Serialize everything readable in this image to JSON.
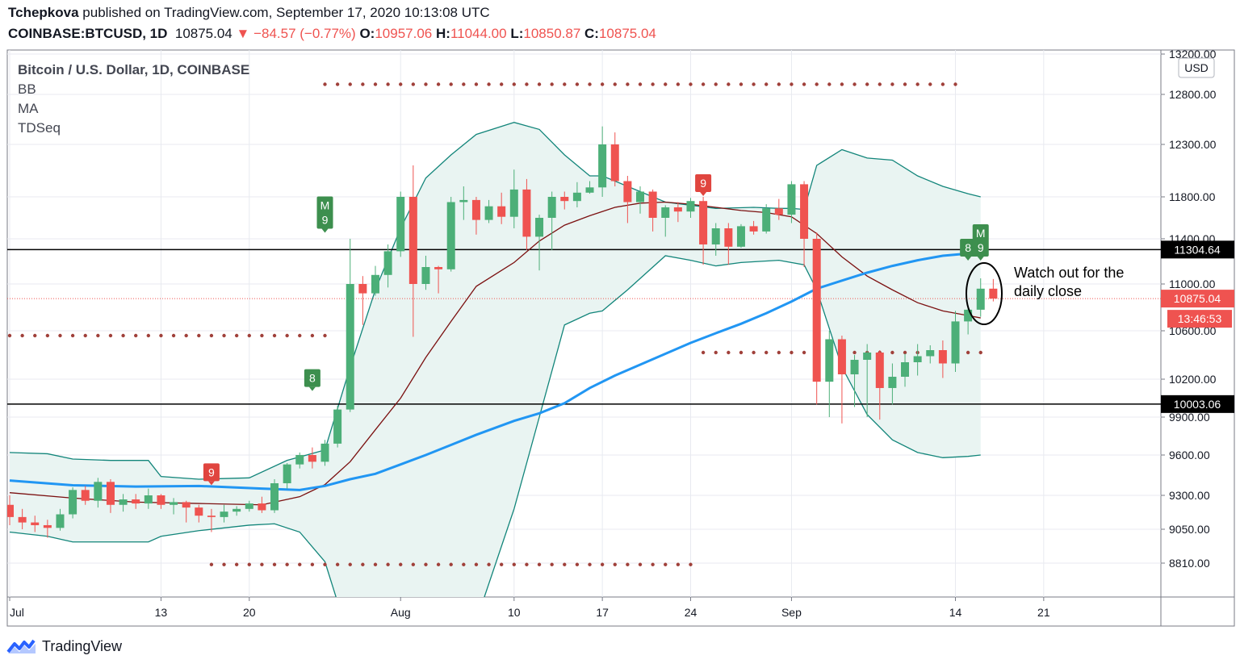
{
  "header": {
    "author": "Tchepkova",
    "published_text": "published on TradingView.com, September 17, 2020 10:13:08 UTC",
    "symbol": "COINBASE:BTCUSD, 1D",
    "last": "10875.04",
    "change": "−84.57 (−0.77%)",
    "open_label": "O:",
    "open": "10957.06",
    "high_label": "H:",
    "high": "11044.00",
    "low_label": "L:",
    "low": "10850.87",
    "close_label": "C:",
    "close": "10875.04"
  },
  "legend": {
    "title": "Bitcoin / U.S. Dollar, 1D, COINBASE",
    "indicators": [
      "BB",
      "MA",
      "TDSeq"
    ]
  },
  "footer": {
    "brand": "TradingView"
  },
  "colors": {
    "up": "#4caf78",
    "down": "#ef5350",
    "bb_band": "#12857a",
    "bb_fill": "#e9f4f2",
    "ma_blue": "#2196f3",
    "ma_dark": "#7b1010",
    "dots": "#a0403a",
    "hline": "#000000",
    "price_tag": "#ef5350"
  },
  "chart_data": {
    "type": "candlestick",
    "currency_badge": "USD",
    "x_ticks": [
      {
        "label": "Jul",
        "index": 0
      },
      {
        "label": "13",
        "index": 12
      },
      {
        "label": "20",
        "index": 19
      },
      {
        "label": "Aug",
        "index": 31
      },
      {
        "label": "10",
        "index": 40
      },
      {
        "label": "17",
        "index": 47
      },
      {
        "label": "24",
        "index": 54
      },
      {
        "label": "Sep",
        "index": 62
      },
      {
        "label": "14",
        "index": 75
      },
      {
        "label": "21",
        "index": 82
      }
    ],
    "y_ticks": [
      "13200.00",
      "12800.00",
      "12300.00",
      "11800.00",
      "11400.00",
      "11000.00",
      "10600.00",
      "10200.00",
      "9900.00",
      "9600.00",
      "9300.00",
      "9050.00",
      "8810.00"
    ],
    "horizontal_lines": [
      {
        "price": 11304.64,
        "label": "11304.64"
      },
      {
        "price": 10003.06,
        "label": "10003.06"
      }
    ],
    "price_label": {
      "price": 10875.04,
      "label": "10875.04",
      "countdown": "13:46:53"
    },
    "candles": [
      [
        9230,
        9300,
        9080,
        9140
      ],
      [
        9140,
        9200,
        9050,
        9100
      ],
      [
        9100,
        9150,
        9030,
        9080
      ],
      [
        9080,
        9120,
        8990,
        9060
      ],
      [
        9060,
        9200,
        9040,
        9160
      ],
      [
        9160,
        9360,
        9130,
        9340
      ],
      [
        9340,
        9370,
        9230,
        9260
      ],
      [
        9260,
        9430,
        9210,
        9400
      ],
      [
        9400,
        9420,
        9170,
        9230
      ],
      [
        9230,
        9310,
        9180,
        9270
      ],
      [
        9270,
        9310,
        9200,
        9240
      ],
      [
        9240,
        9350,
        9200,
        9300
      ],
      [
        9300,
        9310,
        9200,
        9230
      ],
      [
        9230,
        9280,
        9160,
        9250
      ],
      [
        9250,
        9260,
        9100,
        9210
      ],
      [
        9210,
        9230,
        9100,
        9150
      ],
      [
        9150,
        9200,
        9030,
        9140
      ],
      [
        9140,
        9230,
        9100,
        9180
      ],
      [
        9180,
        9220,
        9150,
        9200
      ],
      [
        9200,
        9260,
        9180,
        9240
      ],
      [
        9240,
        9290,
        9170,
        9190
      ],
      [
        9190,
        9420,
        9170,
        9390
      ],
      [
        9390,
        9540,
        9350,
        9530
      ],
      [
        9530,
        9620,
        9500,
        9600
      ],
      [
        9600,
        9660,
        9500,
        9550
      ],
      [
        9550,
        9720,
        9520,
        9690
      ],
      [
        9690,
        9990,
        9660,
        9960
      ],
      [
        9960,
        11400,
        9940,
        11000
      ],
      [
        11000,
        11070,
        10650,
        10920
      ],
      [
        10920,
        11160,
        10900,
        11080
      ],
      [
        11080,
        11350,
        10970,
        11290
      ],
      [
        11290,
        11850,
        11240,
        11800
      ],
      [
        11800,
        12100,
        10550,
        11000
      ],
      [
        11000,
        11250,
        10950,
        11150
      ],
      [
        11150,
        11160,
        10920,
        11130
      ],
      [
        11130,
        11800,
        11110,
        11750
      ],
      [
        11750,
        11900,
        11580,
        11770
      ],
      [
        11770,
        11800,
        11440,
        11580
      ],
      [
        11580,
        11770,
        11550,
        11710
      ],
      [
        11710,
        11840,
        11540,
        11610
      ],
      [
        11610,
        12060,
        11500,
        11870
      ],
      [
        11870,
        11970,
        11300,
        11420
      ],
      [
        11420,
        11630,
        11120,
        11600
      ],
      [
        11600,
        11850,
        11300,
        11800
      ],
      [
        11800,
        11850,
        11680,
        11760
      ],
      [
        11760,
        11940,
        11700,
        11840
      ],
      [
        11840,
        11950,
        11830,
        11890
      ],
      [
        11890,
        12480,
        11800,
        12300
      ],
      [
        12300,
        12420,
        11900,
        11950
      ],
      [
        11950,
        12000,
        11550,
        11750
      ],
      [
        11750,
        11900,
        11640,
        11850
      ],
      [
        11850,
        11870,
        11470,
        11600
      ],
      [
        11600,
        11720,
        11420,
        11700
      ],
      [
        11700,
        11750,
        11560,
        11660
      ],
      [
        11660,
        11790,
        11600,
        11760
      ],
      [
        11760,
        11800,
        11170,
        11350
      ],
      [
        11350,
        11550,
        11250,
        11500
      ],
      [
        11500,
        11550,
        11170,
        11330
      ],
      [
        11330,
        11540,
        11320,
        11520
      ],
      [
        11520,
        11570,
        11440,
        11470
      ],
      [
        11470,
        11730,
        11450,
        11690
      ],
      [
        11690,
        11780,
        11580,
        11630
      ],
      [
        11630,
        11950,
        11550,
        11920
      ],
      [
        11920,
        11950,
        11150,
        11400
      ],
      [
        11400,
        11460,
        10000,
        10180
      ],
      [
        10180,
        10600,
        9900,
        10530
      ],
      [
        10530,
        10560,
        9850,
        10240
      ],
      [
        10240,
        10400,
        9980,
        10360
      ],
      [
        10360,
        10490,
        9900,
        10420
      ],
      [
        10420,
        10440,
        9880,
        10130
      ],
      [
        10130,
        10330,
        10000,
        10220
      ],
      [
        10220,
        10410,
        10140,
        10340
      ],
      [
        10340,
        10490,
        10230,
        10390
      ],
      [
        10390,
        10480,
        10330,
        10440
      ],
      [
        10440,
        10520,
        10210,
        10330
      ],
      [
        10330,
        10770,
        10260,
        10680
      ],
      [
        10680,
        10820,
        10570,
        10780
      ],
      [
        10780,
        11050,
        10720,
        10960
      ],
      [
        10960,
        11044,
        10850.87,
        10875.04
      ]
    ],
    "bb_upper": [
      [
        0,
        9620
      ],
      [
        3,
        9610
      ],
      [
        5,
        9570
      ],
      [
        8,
        9560
      ],
      [
        11,
        9560
      ],
      [
        12,
        9440
      ],
      [
        15,
        9420
      ],
      [
        19,
        9430
      ],
      [
        22,
        9560
      ],
      [
        25,
        9640
      ],
      [
        27,
        10300
      ],
      [
        29,
        10950
      ],
      [
        31,
        11500
      ],
      [
        33,
        11980
      ],
      [
        35,
        12200
      ],
      [
        37,
        12400
      ],
      [
        40,
        12520
      ],
      [
        42,
        12450
      ],
      [
        44,
        12200
      ],
      [
        46,
        12000
      ],
      [
        47,
        12000
      ],
      [
        49,
        11900
      ],
      [
        52,
        11750
      ],
      [
        54,
        11720
      ],
      [
        56,
        11690
      ],
      [
        59,
        11700
      ],
      [
        61,
        11690
      ],
      [
        62,
        11690
      ],
      [
        63,
        11680
      ],
      [
        64,
        12100
      ],
      [
        66,
        12250
      ],
      [
        68,
        12170
      ],
      [
        70,
        12150
      ],
      [
        72,
        12000
      ],
      [
        74,
        11900
      ],
      [
        76,
        11830
      ],
      [
        77,
        11800
      ]
    ],
    "bb_lower": [
      [
        0,
        9030
      ],
      [
        3,
        9000
      ],
      [
        5,
        8960
      ],
      [
        8,
        8960
      ],
      [
        11,
        8960
      ],
      [
        12,
        9000
      ],
      [
        15,
        9040
      ],
      [
        19,
        9080
      ],
      [
        21,
        9090
      ],
      [
        23,
        9030
      ],
      [
        25,
        8820
      ],
      [
        27,
        8250
      ],
      [
        29,
        8000
      ],
      [
        31,
        7900
      ],
      [
        33,
        7850
      ],
      [
        35,
        7950
      ],
      [
        37,
        8400
      ],
      [
        40,
        9200
      ],
      [
        42,
        9900
      ],
      [
        44,
        10650
      ],
      [
        46,
        10750
      ],
      [
        47,
        10770
      ],
      [
        49,
        10950
      ],
      [
        52,
        11250
      ],
      [
        54,
        11210
      ],
      [
        56,
        11160
      ],
      [
        58,
        11190
      ],
      [
        61,
        11210
      ],
      [
        63,
        11170
      ],
      [
        64,
        10950
      ],
      [
        66,
        10300
      ],
      [
        68,
        9920
      ],
      [
        70,
        9720
      ],
      [
        72,
        9620
      ],
      [
        74,
        9580
      ],
      [
        76,
        9590
      ],
      [
        77,
        9600
      ]
    ],
    "ma_blue": [
      [
        0,
        9410
      ],
      [
        5,
        9375
      ],
      [
        10,
        9365
      ],
      [
        15,
        9370
      ],
      [
        20,
        9350
      ],
      [
        23,
        9340
      ],
      [
        25,
        9370
      ],
      [
        27,
        9420
      ],
      [
        29,
        9460
      ],
      [
        31,
        9530
      ],
      [
        33,
        9600
      ],
      [
        35,
        9680
      ],
      [
        37,
        9760
      ],
      [
        40,
        9870
      ],
      [
        42,
        9930
      ],
      [
        44,
        10010
      ],
      [
        46,
        10130
      ],
      [
        48,
        10230
      ],
      [
        50,
        10320
      ],
      [
        52,
        10410
      ],
      [
        54,
        10500
      ],
      [
        56,
        10580
      ],
      [
        58,
        10660
      ],
      [
        60,
        10750
      ],
      [
        62,
        10850
      ],
      [
        64,
        10960
      ],
      [
        66,
        11030
      ],
      [
        68,
        11100
      ],
      [
        70,
        11160
      ],
      [
        72,
        11210
      ],
      [
        74,
        11250
      ],
      [
        76,
        11270
      ],
      [
        77,
        11250
      ]
    ],
    "ma_dark": [
      [
        0,
        9320
      ],
      [
        5,
        9280
      ],
      [
        10,
        9250
      ],
      [
        15,
        9240
      ],
      [
        20,
        9230
      ],
      [
        23,
        9290
      ],
      [
        25,
        9380
      ],
      [
        27,
        9550
      ],
      [
        29,
        9800
      ],
      [
        31,
        10050
      ],
      [
        33,
        10380
      ],
      [
        35,
        10680
      ],
      [
        37,
        10980
      ],
      [
        40,
        11190
      ],
      [
        42,
        11380
      ],
      [
        44,
        11530
      ],
      [
        46,
        11620
      ],
      [
        48,
        11700
      ],
      [
        50,
        11740
      ],
      [
        52,
        11750
      ],
      [
        54,
        11730
      ],
      [
        56,
        11700
      ],
      [
        58,
        11670
      ],
      [
        60,
        11650
      ],
      [
        62,
        11610
      ],
      [
        64,
        11450
      ],
      [
        66,
        11240
      ],
      [
        68,
        11070
      ],
      [
        70,
        10950
      ],
      [
        72,
        10840
      ],
      [
        74,
        10770
      ],
      [
        76,
        10730
      ],
      [
        77,
        10710
      ]
    ],
    "dotted_lines": [
      {
        "price": 12900,
        "from": 25,
        "to": 75
      },
      {
        "price": 10560,
        "from": 0,
        "to": 25
      },
      {
        "price": 10420,
        "from": 55,
        "to": 77
      },
      {
        "price": 8800,
        "from": 16,
        "to": 54
      }
    ],
    "td_markers": [
      {
        "index": 16,
        "text": "9",
        "color": "down",
        "pos": "above",
        "price": 9370
      },
      {
        "index": 24,
        "text": "8",
        "color": "up",
        "pos": "above",
        "price": 10100
      },
      {
        "index": 25,
        "text": "M",
        "text2": "9",
        "color": "up",
        "pos": "above",
        "price": 11450
      },
      {
        "index": 55,
        "text": "9",
        "color": "down",
        "pos": "above",
        "price": 11800
      },
      {
        "index": 76,
        "text": "8",
        "color": "up",
        "pos": "above",
        "price": 11200
      },
      {
        "index": 77,
        "text": "M",
        "text2": "9",
        "color": "up",
        "pos": "above",
        "price": 11200
      }
    ],
    "annotation": {
      "line1": "Watch out for the",
      "line2": "daily close"
    }
  }
}
